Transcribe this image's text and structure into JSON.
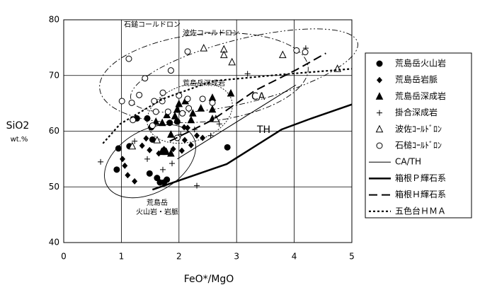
{
  "chart_data": {
    "type": "scatter",
    "xlabel": "FeO*/MgO",
    "ylabel": "SiO2",
    "yunit": "wt.%",
    "xlim": [
      0,
      5
    ],
    "ylim": [
      40,
      80
    ],
    "xticks": [
      0,
      1,
      2,
      3,
      4,
      5
    ],
    "yticks": [
      40,
      50,
      60,
      70,
      80
    ],
    "grid": true,
    "legend": "right",
    "annotations": [
      "石鎚コールドロン",
      "波佐コールドロン",
      "荒島岳深成岩",
      "CA",
      "TH",
      "荒島岳",
      "火山岩・岩脈"
    ],
    "series": [
      {
        "name": "荒島岳火山岩",
        "marker": "circle-filled",
        "color": "#000",
        "x": [
          0.95,
          0.92,
          1.49,
          1.62,
          1.67,
          1.74,
          1.79,
          1.27,
          1.45,
          1.52,
          1.14,
          1.84,
          1.97,
          2.84,
          1.54
        ],
        "values": [
          56.9,
          53.1,
          52.4,
          51.6,
          50.8,
          50.8,
          51.3,
          62.3,
          62.3,
          60.7,
          57.3,
          61.5,
          61.7,
          57.1,
          58.5
        ]
      },
      {
        "name": "荒島岳岩脈",
        "marker": "diamond",
        "color": "#000",
        "x": [
          1.02,
          1.11,
          1.23,
          1.06,
          1.36,
          1.49,
          1.74,
          1.9,
          2.05,
          2.1,
          2.21,
          2.31,
          2.41,
          2.15,
          2.09,
          1.65,
          1.43
        ],
        "values": [
          55.0,
          52.1,
          51.0,
          53.8,
          57.4,
          56.6,
          56.8,
          56.8,
          56.5,
          58.4,
          57.5,
          59.2,
          58.8,
          60.6,
          60.7,
          56.0,
          58.7
        ]
      },
      {
        "name": "荒島岳深成岩",
        "marker": "triangle-filled",
        "color": "#000",
        "x": [
          2.9,
          2.58,
          2.58,
          2.11,
          2.0,
          1.97,
          1.93,
          1.79,
          2.24,
          2.38,
          1.71,
          1.86,
          1.6,
          2.21,
          1.78,
          1.7,
          1.86,
          2.58
        ],
        "values": [
          66.8,
          63.9,
          66.0,
          65.4,
          64.9,
          63.9,
          62.7,
          62.9,
          63.2,
          64.1,
          61.5,
          59.4,
          61.7,
          62.0,
          56.3,
          56.3,
          56.0,
          62.2
        ]
      },
      {
        "name": "掛合深成岩",
        "marker": "plus",
        "color": "#000",
        "x": [
          0.64,
          3.19,
          2.31,
          1.88,
          1.72,
          2.27,
          2.03,
          1.23,
          1.45,
          4.2,
          2.7,
          2.55
        ],
        "values": [
          54.5,
          70.3,
          50.2,
          54.2,
          53.1,
          60.3,
          59.4,
          58.2,
          55.0,
          74.9,
          61.3,
          59.2
        ]
      },
      {
        "name": "波佐ｺｰﾙﾄﾞﾛﾝ",
        "marker": "triangle-open",
        "color": "#000",
        "x": [
          2.43,
          2.78,
          2.78,
          2.92,
          3.8,
          4.75,
          1.19,
          1.62,
          2.64
        ],
        "values": [
          74.9,
          74.7,
          73.7,
          72.4,
          73.7,
          71.2,
          57.3,
          58.4,
          62.2
        ]
      },
      {
        "name": "石槌ｺｰﾙﾄﾞﾛﾝ",
        "marker": "circle-open",
        "color": "#000",
        "x": [
          1.13,
          2.15,
          4.04,
          4.19,
          1.86,
          1.41,
          1.01,
          1.18,
          1.31,
          1.57,
          1.72,
          1.71,
          2.0,
          2.15,
          2.41,
          2.58,
          2.17,
          1.6,
          1.81,
          2.06,
          1.2,
          1.54,
          1.97
        ],
        "values": [
          73.0,
          74.3,
          74.5,
          74.2,
          70.9,
          69.5,
          65.4,
          65.1,
          66.5,
          65.4,
          66.9,
          65.4,
          66.4,
          65.8,
          65.8,
          65.1,
          64.1,
          63.5,
          63.5,
          63.2,
          62.0,
          61.0,
          58.8
        ]
      },
      {
        "name": "CA/TH",
        "line": "thin",
        "color": "#000",
        "x": [
          1.97,
          4.03
        ],
        "values": [
          55.0,
          68.3
        ]
      },
      {
        "name": "箱根Ｐ輝石系",
        "line": "thick",
        "color": "#000",
        "x": [
          1.54,
          2.83,
          3.78,
          4.3,
          5.0
        ],
        "values": [
          49.5,
          54.1,
          60.3,
          62.3,
          64.8
        ]
      },
      {
        "name": "箱根Ｈ輝石系",
        "line": "dashed",
        "color": "#000",
        "x": [
          1.84,
          2.58,
          3.32,
          4.05,
          4.55
        ],
        "values": [
          58.2,
          62.0,
          67.3,
          71.1,
          74.0
        ]
      },
      {
        "name": "五色台ＨＭＡ",
        "line": "dotted",
        "color": "#000",
        "x": [
          0.68,
          0.98,
          1.72,
          2.58,
          3.81,
          5.0
        ],
        "values": [
          57.8,
          61.3,
          65.8,
          69.0,
          70.2,
          71.2
        ]
      }
    ]
  }
}
